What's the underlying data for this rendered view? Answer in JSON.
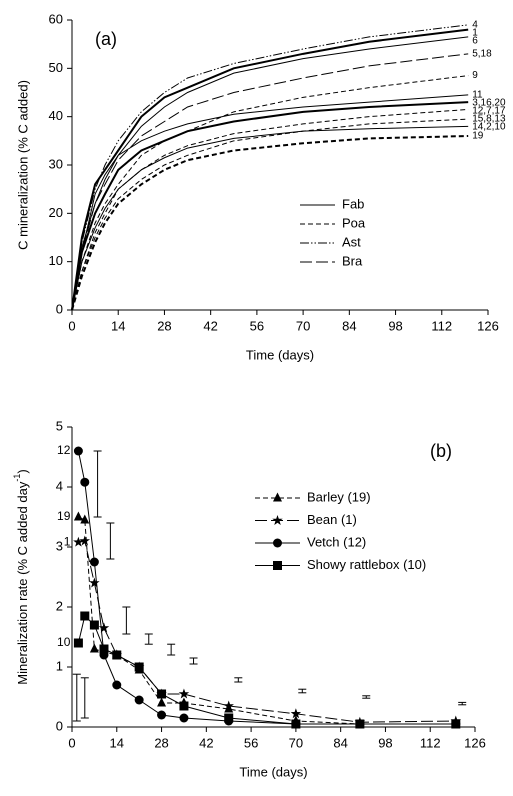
{
  "chart_data": [
    {
      "type": "line",
      "annotation": "(a)",
      "xlabel": "Time (days)",
      "ylabel": "C mineralization (% C added)",
      "x": [
        0,
        3,
        7,
        10,
        14,
        21,
        28,
        35,
        49,
        70,
        90,
        120
      ],
      "xlim": [
        0,
        126
      ],
      "xticks": [
        0,
        14,
        28,
        42,
        56,
        70,
        84,
        98,
        112,
        126
      ],
      "ylim": [
        0,
        60
      ],
      "yticks": [
        0,
        10,
        20,
        30,
        40,
        50,
        60
      ],
      "point_label_side": "end",
      "legend": [
        {
          "name": "Fab",
          "style": "solid"
        },
        {
          "name": "Poa",
          "style": "dash"
        },
        {
          "name": "Ast",
          "style": "dashdot"
        },
        {
          "name": "Bra",
          "style": "longdash"
        }
      ],
      "series": [
        {
          "label": "4",
          "style": "dashdot",
          "width": 1,
          "color": "#000000",
          "values": [
            0,
            14,
            25,
            30,
            35,
            41,
            45,
            48,
            51,
            54,
            56.5,
            59
          ]
        },
        {
          "label": "1",
          "style": "solid",
          "width": 2,
          "color": "#000000",
          "values": [
            0,
            15,
            26,
            29,
            33,
            40,
            44,
            46,
            50,
            53,
            55.5,
            58
          ]
        },
        {
          "label": "6",
          "style": "solid",
          "width": 1,
          "color": "#000000",
          "values": [
            0,
            13,
            22,
            27,
            32,
            38,
            42,
            45,
            49,
            52,
            54,
            56.5
          ]
        },
        {
          "label": "5,18",
          "style": "longdash",
          "width": 1,
          "color": "#000000",
          "values": [
            0,
            12,
            22,
            26,
            31,
            36,
            39,
            42,
            45,
            48,
            50.5,
            53
          ]
        },
        {
          "label": "9",
          "style": "dash",
          "width": 1,
          "color": "#000000",
          "values": [
            0,
            10,
            18,
            22,
            26,
            32,
            35,
            37,
            41,
            44,
            46,
            48.5
          ]
        },
        {
          "label": "11",
          "style": "solid",
          "width": 1,
          "color": "#000000",
          "values": [
            0,
            12,
            24,
            28,
            32,
            35,
            37,
            38.5,
            40.5,
            42,
            43,
            44.5
          ]
        },
        {
          "label": "3,16,20",
          "style": "solid",
          "width": 2,
          "color": "#000000",
          "values": [
            0,
            12,
            20,
            24,
            29,
            33,
            35,
            37,
            39,
            41,
            42,
            43
          ]
        },
        {
          "label": "12,7,17",
          "style": "dash",
          "width": 1,
          "color": "#000000",
          "values": [
            0,
            8,
            16,
            20,
            25,
            29,
            32,
            34,
            36.5,
            38.5,
            40,
            41.5
          ]
        },
        {
          "label": "15,8,13",
          "style": "dash",
          "width": 1,
          "color": "#000000",
          "values": [
            0,
            8,
            15,
            19,
            23,
            27,
            30,
            32,
            35,
            37,
            38.5,
            39.5
          ]
        },
        {
          "label": "14,2,10",
          "style": "solid",
          "width": 1,
          "color": "#000000",
          "values": [
            0,
            10,
            17,
            21,
            25,
            29,
            31.5,
            33.5,
            35.5,
            37,
            37.5,
            38
          ]
        },
        {
          "label": "19",
          "style": "dash",
          "width": 2,
          "color": "#000000",
          "values": [
            0,
            7,
            14,
            18,
            22,
            26,
            29,
            31,
            33,
            34.5,
            35.5,
            36
          ]
        }
      ]
    },
    {
      "type": "line",
      "annotation": "(b)",
      "xlabel": "Time (days)",
      "ylabel": {
        "text": "Mineralization rate (% C added day",
        "sup": "-1",
        "close": ")"
      },
      "x": [
        2,
        4,
        7,
        10,
        14,
        21,
        28,
        35,
        49,
        70,
        90,
        120
      ],
      "xlim": [
        0,
        126
      ],
      "xticks": [
        0,
        14,
        28,
        42,
        56,
        70,
        84,
        98,
        112,
        126
      ],
      "ylim": [
        0,
        5
      ],
      "yticks": [
        0,
        1,
        2,
        3,
        4,
        5
      ],
      "point_label_side": "start",
      "series": [
        {
          "name": "Barley (19)",
          "label": "19",
          "marker": "triangle",
          "style": "dash",
          "width": 1,
          "color": "#000000",
          "values": [
            3.5,
            3.45,
            1.3,
            1.25,
            1.2,
            0.95,
            0.4,
            0.4,
            0.3,
            0.1,
            0.05,
            0.05
          ]
        },
        {
          "name": "Bean (1)",
          "label": "1",
          "marker": "star",
          "style": "longdash",
          "width": 1,
          "color": "#000000",
          "values": [
            3.08,
            3.1,
            2.4,
            1.65,
            1.2,
            1.0,
            0.55,
            0.55,
            0.35,
            0.22,
            0.08,
            0.1
          ]
        },
        {
          "name": "Vetch (12)",
          "label": "12",
          "marker": "circle",
          "style": "solid",
          "width": 1,
          "color": "#000000",
          "values": [
            4.6,
            4.08,
            2.75,
            1.2,
            0.7,
            0.45,
            0.2,
            0.15,
            0.1,
            0.05,
            0.05,
            0.05
          ]
        },
        {
          "name": "Showy rattlebox (10)",
          "label": "10",
          "marker": "square",
          "style": "solid",
          "width": 1,
          "color": "#000000",
          "values": [
            1.4,
            1.85,
            1.7,
            1.3,
            1.2,
            1.0,
            0.55,
            0.35,
            0.15,
            0.05,
            0.05,
            0.05
          ]
        }
      ],
      "error_bars": {
        "x": [
          1.5,
          4,
          8,
          12,
          17,
          24,
          31,
          38,
          52,
          72,
          92,
          122
        ],
        "low": [
          0.1,
          0.15,
          3.5,
          2.8,
          1.55,
          1.38,
          1.2,
          1.05,
          0.75,
          0.57,
          0.48,
          0.37
        ],
        "high": [
          0.88,
          0.82,
          4.6,
          3.4,
          2.0,
          1.55,
          1.38,
          1.15,
          0.82,
          0.63,
          0.52,
          0.41
        ]
      }
    }
  ]
}
